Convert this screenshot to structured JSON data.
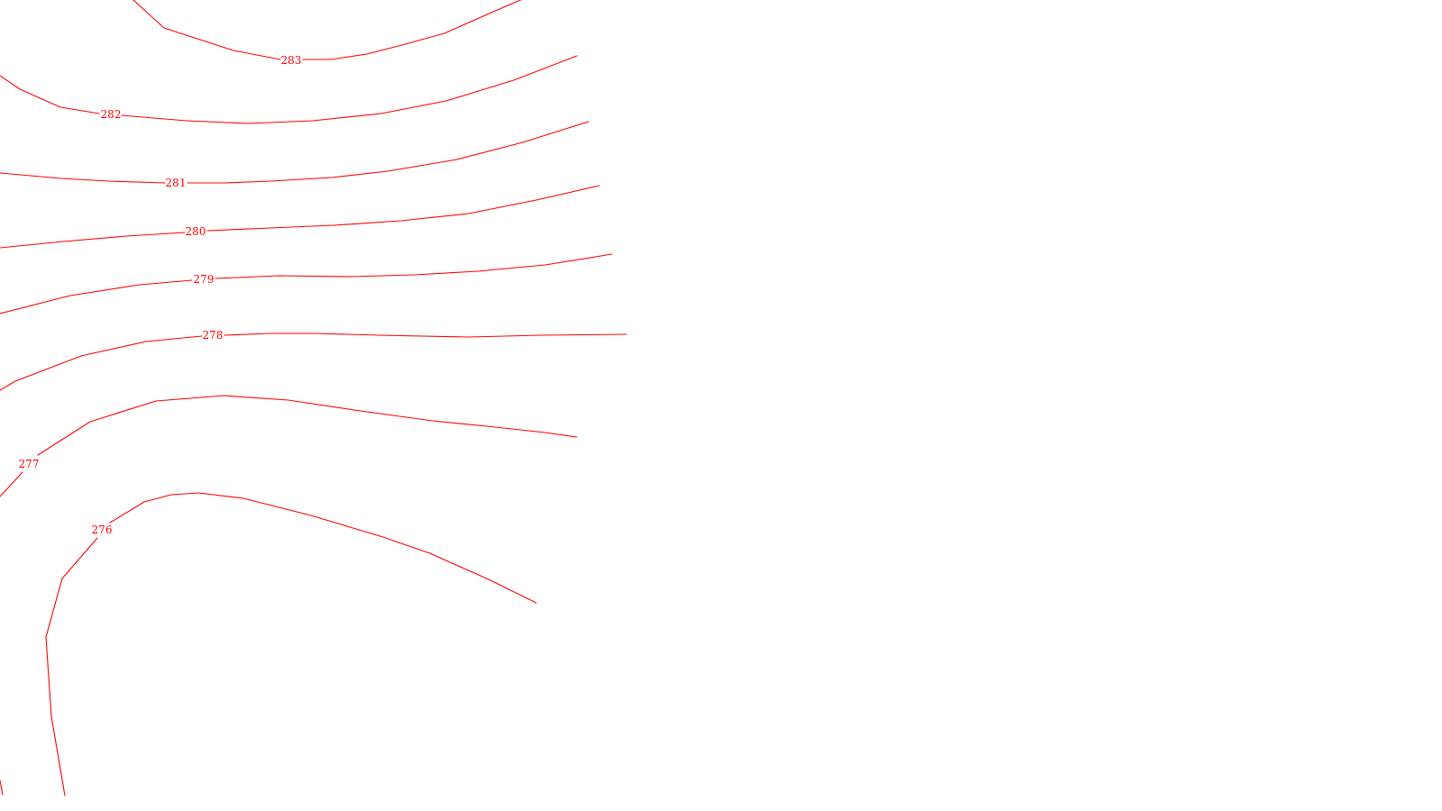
{
  "contour_color": "#ff0000",
  "background": "#ffffff",
  "contours": [
    {
      "elevation": "283"
    },
    {
      "elevation": "282"
    },
    {
      "elevation": "281"
    },
    {
      "elevation": "280"
    },
    {
      "elevation": "279"
    },
    {
      "elevation": "278"
    },
    {
      "elevation": "277"
    },
    {
      "elevation": "276"
    }
  ]
}
